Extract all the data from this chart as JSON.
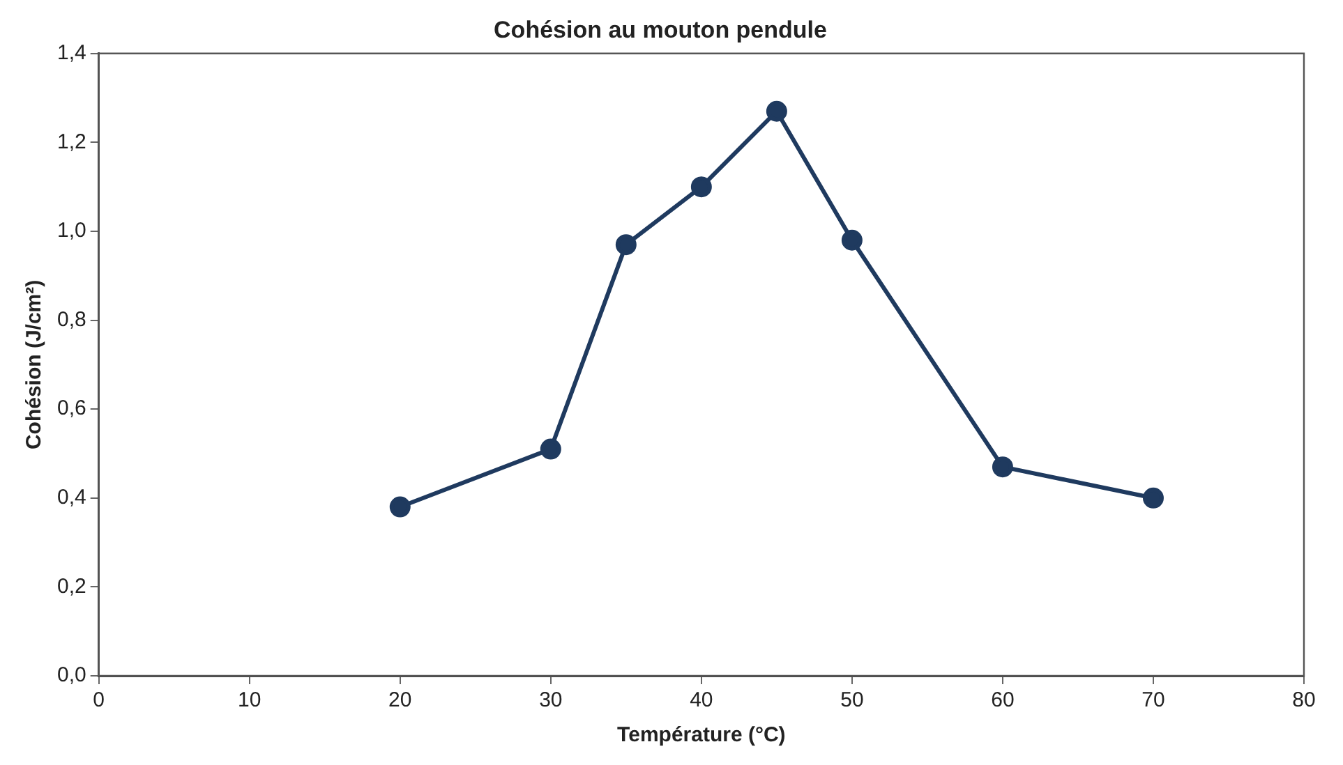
{
  "chart_data": {
    "type": "line",
    "title": "Cohésion au mouton pendule",
    "xlabel": "Température (°C)",
    "ylabel": "Cohésion (J/cm²)",
    "x": [
      20,
      30,
      35,
      40,
      45,
      50,
      60,
      70
    ],
    "series": [
      {
        "color": "#1f3a5f",
        "values": [
          0.38,
          0.51,
          0.97,
          1.1,
          1.27,
          0.98,
          0.47,
          0.4
        ]
      }
    ],
    "xlim": [
      0,
      80
    ],
    "xticks": [
      0,
      10,
      20,
      30,
      40,
      50,
      60,
      70,
      80
    ],
    "ylim": [
      0,
      1.4
    ],
    "yticks": [
      {
        "value": 0,
        "label": "0,0"
      },
      {
        "value": 0.2,
        "label": "0,2"
      },
      {
        "value": 0.4,
        "label": "0,4"
      },
      {
        "value": 0.6,
        "label": "0,6"
      },
      {
        "value": 0.8,
        "label": "0,8"
      },
      {
        "value": 1,
        "label": "1,0"
      },
      {
        "value": 1.2,
        "label": "1,2"
      },
      {
        "value": 1.4,
        "label": "1,4"
      }
    ],
    "grid": false,
    "legend": false,
    "marker": "circle",
    "line_style": "solid"
  }
}
